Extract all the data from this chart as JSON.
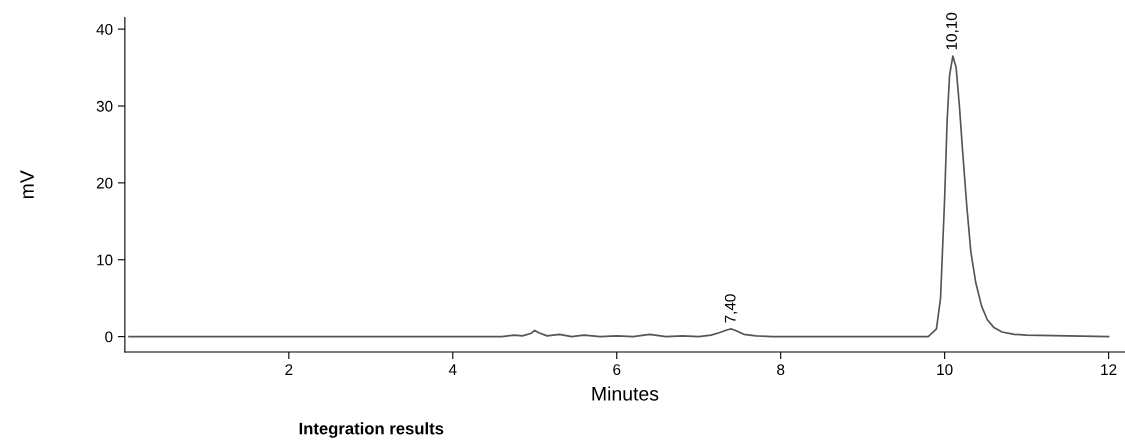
{
  "chart_data": {
    "type": "line",
    "xlabel": "Minutes",
    "ylabel": "mV",
    "xlim": [
      0,
      12.2
    ],
    "ylim": [
      -2,
      41.5
    ],
    "xticks": [
      2,
      4,
      6,
      8,
      10,
      12
    ],
    "yticks": [
      0,
      10,
      20,
      30,
      40
    ],
    "grid": false,
    "legend": false,
    "marker": "none",
    "line_style": "solid",
    "series": [
      {
        "color": "#555555",
        "x": [
          0.05,
          4.6,
          4.75,
          4.85,
          4.95,
          5.0,
          5.05,
          5.15,
          5.3,
          5.45,
          5.6,
          5.8,
          6.0,
          6.2,
          6.4,
          6.6,
          6.8,
          7.0,
          7.15,
          7.25,
          7.35,
          7.4,
          7.45,
          7.55,
          7.7,
          7.9,
          8.4,
          9.8,
          9.9,
          9.95,
          10.0,
          10.03,
          10.06,
          10.1,
          10.14,
          10.18,
          10.22,
          10.27,
          10.32,
          10.38,
          10.45,
          10.52,
          10.6,
          10.7,
          10.85,
          11.0,
          11.5,
          12.0
        ],
        "values": [
          0,
          0,
          0.2,
          0.1,
          0.4,
          0.8,
          0.5,
          0.1,
          0.3,
          0.0,
          0.2,
          0.0,
          0.1,
          0.0,
          0.3,
          0.0,
          0.1,
          0.0,
          0.2,
          0.5,
          0.9,
          1.0,
          0.8,
          0.3,
          0.1,
          0.0,
          0.0,
          0.0,
          1.0,
          5,
          18,
          28,
          34,
          36.5,
          35,
          30,
          24,
          17,
          11,
          7,
          4,
          2.2,
          1.2,
          0.6,
          0.3,
          0.2,
          0.1,
          0.0
        ]
      }
    ],
    "annotations": [
      {
        "text": "7,40",
        "x": 7.4,
        "y": 1.0
      },
      {
        "text": "10,10",
        "x": 10.1,
        "y": 36.5
      },
      "Integration results"
    ]
  }
}
